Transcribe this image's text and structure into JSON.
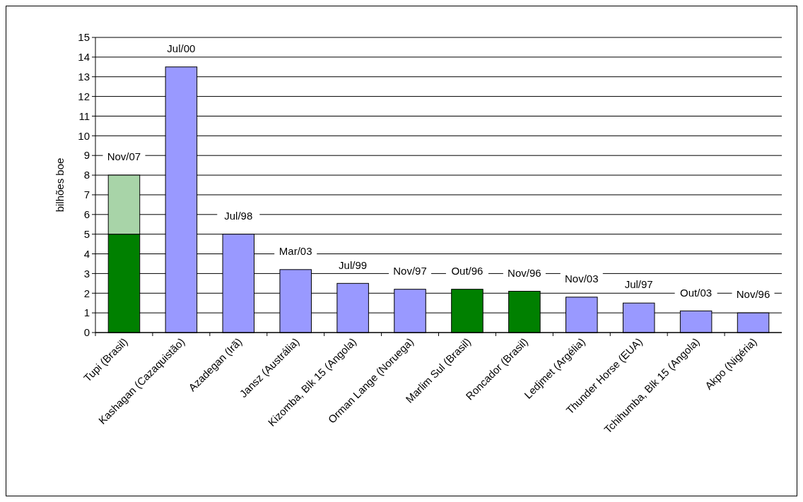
{
  "chart_data": {
    "type": "bar",
    "stacked": true,
    "ylabel": "bilhões boe",
    "categories": [
      "Tupi (Brasil)",
      "Kashagan (Cazaquistão)",
      "Azadegan (Irã)",
      "Jansz (Austrália)",
      "Kizomba, Blk 15 (Angola)",
      "Orman Lange (Noruega)",
      "Marlim Sul (Brasil)",
      "Roncador (Brasil)",
      "Ledjmet (Argélia)",
      "Thunder Horse (EUA)",
      "Tchihumba, Blk 15 (Angola)",
      "Akpo (Nigéria)"
    ],
    "series": [
      {
        "colors": [
          "#008000",
          "#9999ff",
          "#9999ff",
          "#9999ff",
          "#9999ff",
          "#9999ff",
          "#008000",
          "#008000",
          "#9999ff",
          "#9999ff",
          "#9999ff",
          "#9999ff"
        ],
        "values": [
          5,
          13.5,
          5,
          3.2,
          2.5,
          2.2,
          2.2,
          2.1,
          1.8,
          1.5,
          1.1,
          1.0
        ]
      },
      {
        "color": "#a8d4a8",
        "values": [
          3,
          null,
          null,
          null,
          null,
          null,
          null,
          null,
          null,
          null,
          null,
          null
        ]
      }
    ],
    "ylim": [
      0,
      15
    ],
    "yticks": [
      0,
      1,
      2,
      3,
      4,
      5,
      6,
      7,
      8,
      9,
      10,
      11,
      12,
      13,
      14,
      15
    ],
    "grid": "y",
    "annotations": [
      {
        "text": "Nov/07",
        "x": "Tupi (Brasil)",
        "y": 8
      },
      {
        "text": "Jul/00",
        "x": "Kashagan (Cazaquistão)",
        "y": 13.5
      },
      {
        "text": "Jul/98",
        "x": "Azadegan (Irã)",
        "y": 5
      },
      {
        "text": "Mar/03",
        "x": "Jansz (Austrália)",
        "y": 3.2
      },
      {
        "text": "Jul/99",
        "x": "Kizomba, Blk 15 (Angola)",
        "y": 2.5
      },
      {
        "text": "Nov/97",
        "x": "Orman Lange (Noruega)",
        "y": 2.2
      },
      {
        "text": "Out/96",
        "x": "Marlim Sul (Brasil)",
        "y": 2.2
      },
      {
        "text": "Nov/96",
        "x": "Roncador (Brasil)",
        "y": 2.1
      },
      {
        "text": "Nov/03",
        "x": "Ledjmet (Argélia)",
        "y": 1.8
      },
      {
        "text": "Jul/97",
        "x": "Thunder Horse (EUA)",
        "y": 1.5
      },
      {
        "text": "Out/03",
        "x": "Tchihumba, Blk 15 (Angola)",
        "y": 1.1
      },
      {
        "text": "Nov/96",
        "x": "Akpo (Nigéria)",
        "y": 1.0
      }
    ]
  }
}
